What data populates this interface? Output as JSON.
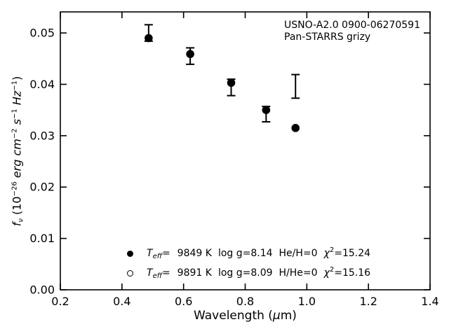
{
  "figure": {
    "background": "#ffffff",
    "ink": "#000000"
  },
  "annotations": {
    "line1": "USNO-A2.0 0900-06270591",
    "line2": "Pan-STARRS grizy"
  },
  "axes": {
    "xtick_labels": [
      "0.2",
      "0.4",
      "0.6",
      "0.8",
      "1.0",
      "1.2",
      "1.4"
    ],
    "ytick_labels": [
      "0.00",
      "0.01",
      "0.02",
      "0.03",
      "0.04",
      "0.05"
    ],
    "xlabel_parts": [
      {
        "text": "Wavelength ("
      },
      {
        "text": "μ"
      },
      {
        "text": "m)"
      }
    ],
    "ylabel_parts": [
      {
        "text": "f"
      },
      {
        "text": "ν"
      },
      {
        "text": " (10"
      },
      {
        "text": "−26"
      },
      {
        "text": " erg cm"
      },
      {
        "text": "−2"
      },
      {
        "text": " s"
      },
      {
        "text": "−1"
      },
      {
        "text": " Hz"
      },
      {
        "text": "−1"
      },
      {
        "text": ")"
      }
    ]
  },
  "chart_data": {
    "type": "scatter",
    "title": "",
    "xlabel": "Wavelength (μm)",
    "ylabel": "f_ν (10^−26 erg cm^−2 s^−1 Hz^−1)",
    "xlim": [
      0.2,
      1.4
    ],
    "ylim": [
      0,
      0.0541
    ],
    "grid": false,
    "tick_direction": "in",
    "ticks_all_sides": true,
    "xticks": [
      0.2,
      0.4,
      0.6,
      0.8,
      1.0,
      1.2,
      1.4
    ],
    "yticks": [
      0,
      0.01,
      0.02,
      0.03,
      0.04,
      0.05
    ],
    "annotations": [
      "USNO-A2.0 0900-06270591",
      "Pan-STARRS grizy"
    ],
    "legend_entries": [
      "T_eff=  9849 K  log g=8.14  He/H=0  χ²=15.24",
      "T_eff=  9891 K  log g=8.09  H/He=0  χ²=15.16"
    ],
    "series": [
      {
        "name": "observed-photometry-errorbars",
        "style": "errorbar-no-marker",
        "x": [
          0.4866,
          0.6215,
          0.7545,
          0.8679,
          0.9633
        ],
        "y": [
          0.05,
          0.0455,
          0.0394,
          0.0342,
          0.0396
        ],
        "yerr": [
          0.0016,
          0.0016,
          0.0016,
          0.0015,
          0.0023
        ]
      },
      {
        "name": "model-synthetic-photometry",
        "style": "filled-circle",
        "x": [
          0.4866,
          0.6215,
          0.7545,
          0.8679,
          0.9633
        ],
        "y": [
          0.049,
          0.0459,
          0.0403,
          0.035,
          0.0315
        ]
      }
    ]
  },
  "legend": {
    "entries": [
      {
        "marker": "filled-circle",
        "t": "T",
        "t_sub": "eff",
        "eq": "=",
        "temperature": "9849 K",
        "logg": "log g=8.14",
        "composition": "He/H=0",
        "chi": "χ",
        "chi_sup": "2",
        "chi_val": "=15.24"
      },
      {
        "marker": "open-circle",
        "t": "T",
        "t_sub": "eff",
        "eq": "=",
        "temperature": "9891 K",
        "logg": "log g=8.09",
        "composition": "H/He=0",
        "chi": "χ",
        "chi_sup": "2",
        "chi_val": "=15.16"
      }
    ]
  }
}
